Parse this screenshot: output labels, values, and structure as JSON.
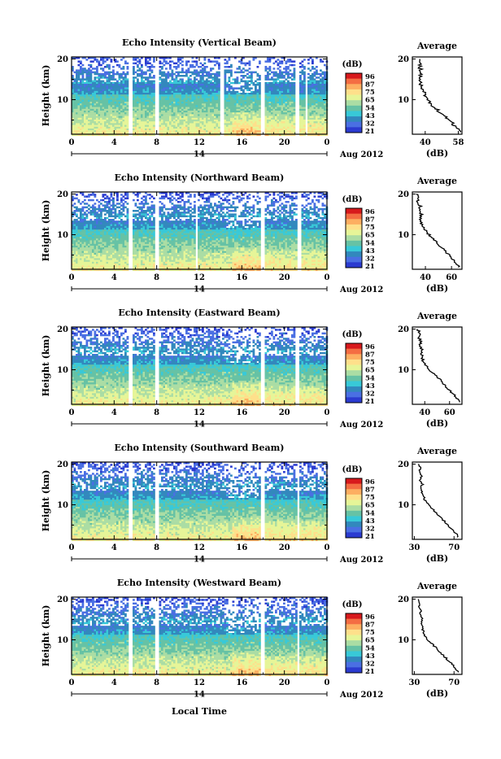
{
  "figure": {
    "xlabel": "Local Time",
    "date_label": "Aug 2012",
    "date_tick": "14",
    "ylabel": "Height (km)",
    "colorbar_unit": "(dB)",
    "average_title": "Average",
    "average_xlabel": "(dB)"
  },
  "colorbar": {
    "ticks": [
      "96",
      "87",
      "75",
      "65",
      "54",
      "43",
      "32",
      "21"
    ],
    "colors": [
      "#d7191c",
      "#f46d43",
      "#fdae61",
      "#fee08b",
      "#e6f598",
      "#abdda4",
      "#66c2a5",
      "#38c9d8",
      "#3288bd",
      "#4a6fe3",
      "#2b3bd0"
    ]
  },
  "chart_data": [
    {
      "type": "heatmap",
      "title": "Echo Intensity (Vertical Beam)",
      "xlabel": "Local Time",
      "ylabel": "Height (km)",
      "x_ticks": [
        "0",
        "4",
        "8",
        "12",
        "16",
        "20",
        "0"
      ],
      "xlim": [
        0,
        24
      ],
      "y_ticks": [
        "10",
        "20"
      ],
      "ylim": [
        1.5,
        20.5
      ],
      "colorbar": {
        "label": "(dB)",
        "ticks": [
          96,
          87,
          75,
          65,
          54,
          43,
          32,
          21
        ]
      },
      "gaps_hours": [
        [
          5.2,
          5.6
        ],
        [
          7.7,
          8.1
        ],
        [
          13.9,
          14.3
        ],
        [
          17.6,
          18.1
        ],
        [
          20.9,
          21.3
        ],
        [
          21.8,
          22.1
        ]
      ],
      "average_profile": {
        "title": "Average",
        "xlabel": "(dB)",
        "x_ticks": [
          "40",
          "58"
        ],
        "xlim": [
          33,
          60
        ],
        "height_km": [
          2,
          3,
          4,
          5,
          6,
          7,
          8,
          9,
          10,
          11,
          12,
          13,
          14,
          15,
          16,
          17,
          18,
          19,
          20
        ],
        "value_db": [
          59,
          57,
          55,
          53,
          51,
          48,
          45,
          43,
          41,
          40,
          39,
          38,
          37,
          38,
          37,
          38,
          37,
          38,
          37
        ]
      }
    },
    {
      "type": "heatmap",
      "title": "Echo Intensity (Northward Beam)",
      "xlabel": "Local Time",
      "ylabel": "Height (km)",
      "x_ticks": [
        "0",
        "4",
        "8",
        "12",
        "16",
        "20",
        "0"
      ],
      "xlim": [
        0,
        24
      ],
      "y_ticks": [
        "10",
        "20"
      ],
      "ylim": [
        1.5,
        20.5
      ],
      "colorbar": {
        "label": "(dB)",
        "ticks": [
          96,
          87,
          75,
          65,
          54,
          43,
          32,
          21
        ]
      },
      "gaps_hours": [
        [
          5.3,
          5.6
        ],
        [
          7.8,
          8.1
        ],
        [
          11.6,
          11.8
        ],
        [
          17.6,
          18.0
        ],
        [
          21.2,
          21.5
        ]
      ],
      "average_profile": {
        "title": "Average",
        "xlabel": "(dB)",
        "x_ticks": [
          "40",
          "60"
        ],
        "xlim": [
          30,
          68
        ],
        "height_km": [
          2,
          3,
          4,
          5,
          6,
          7,
          8,
          9,
          10,
          11,
          12,
          13,
          14,
          15,
          16,
          17,
          18,
          19,
          20
        ],
        "value_db": [
          66,
          64,
          61,
          58,
          55,
          52,
          49,
          46,
          43,
          40,
          38,
          37,
          36,
          37,
          35,
          36,
          34,
          35,
          33
        ]
      }
    },
    {
      "type": "heatmap",
      "title": "Echo Intensity (Eastward Beam)",
      "xlabel": "Local Time",
      "ylabel": "Height (km)",
      "x_ticks": [
        "0",
        "4",
        "8",
        "12",
        "16",
        "20",
        "0"
      ],
      "xlim": [
        0,
        24
      ],
      "y_ticks": [
        "10",
        "20"
      ],
      "ylim": [
        1.5,
        20.5
      ],
      "colorbar": {
        "label": "(dB)",
        "ticks": [
          96,
          87,
          75,
          65,
          54,
          43,
          32,
          21
        ]
      },
      "gaps_hours": [
        [
          5.3,
          5.6
        ],
        [
          7.8,
          8.1
        ],
        [
          17.6,
          18.0
        ],
        [
          21.0,
          21.3
        ]
      ],
      "average_profile": {
        "title": "Average",
        "xlabel": "(dB)",
        "x_ticks": [
          "40",
          "60"
        ],
        "xlim": [
          30,
          70
        ],
        "height_km": [
          2,
          3,
          4,
          5,
          6,
          7,
          8,
          9,
          10,
          11,
          12,
          13,
          14,
          15,
          16,
          17,
          18,
          19,
          20
        ],
        "value_db": [
          68,
          66,
          63,
          60,
          57,
          54,
          51,
          47,
          44,
          41,
          39,
          38,
          37,
          38,
          36,
          37,
          35,
          36,
          34
        ]
      }
    },
    {
      "type": "heatmap",
      "title": "Echo Intensity (Southward Beam)",
      "xlabel": "Local Time",
      "ylabel": "Height (km)",
      "x_ticks": [
        "0",
        "4",
        "8",
        "12",
        "16",
        "20",
        "0"
      ],
      "xlim": [
        0,
        24
      ],
      "y_ticks": [
        "10",
        "20"
      ],
      "ylim": [
        1.5,
        20.5
      ],
      "colorbar": {
        "label": "(dB)",
        "ticks": [
          96,
          87,
          75,
          65,
          54,
          43,
          32,
          21
        ]
      },
      "gaps_hours": [
        [
          5.3,
          5.6
        ],
        [
          7.8,
          8.1
        ],
        [
          17.6,
          18.0
        ],
        [
          21.1,
          21.4
        ]
      ],
      "average_profile": {
        "title": "Average",
        "xlabel": "(dB)",
        "x_ticks": [
          "30",
          "70"
        ],
        "xlim": [
          28,
          78
        ],
        "height_km": [
          2,
          3,
          4,
          5,
          6,
          7,
          8,
          9,
          10,
          11,
          12,
          13,
          14,
          15,
          16,
          17,
          18,
          19,
          20
        ],
        "value_db": [
          74,
          72,
          68,
          64,
          60,
          56,
          52,
          48,
          44,
          41,
          39,
          38,
          37,
          38,
          36,
          37,
          35,
          36,
          34
        ]
      }
    },
    {
      "type": "heatmap",
      "title": "Echo Intensity (Westward Beam)",
      "xlabel": "Local Time",
      "ylabel": "Height (km)",
      "x_ticks": [
        "0",
        "4",
        "8",
        "12",
        "16",
        "20",
        "0"
      ],
      "xlim": [
        0,
        24
      ],
      "y_ticks": [
        "10",
        "20"
      ],
      "ylim": [
        1.5,
        20.5
      ],
      "colorbar": {
        "label": "(dB)",
        "ticks": [
          96,
          87,
          75,
          65,
          54,
          43,
          32,
          21
        ]
      },
      "gaps_hours": [
        [
          5.3,
          5.6
        ],
        [
          7.8,
          8.1
        ],
        [
          17.6,
          18.0
        ],
        [
          21.1,
          21.4
        ]
      ],
      "average_profile": {
        "title": "Average",
        "xlabel": "(dB)",
        "x_ticks": [
          "30",
          "70"
        ],
        "xlim": [
          28,
          78
        ],
        "height_km": [
          2,
          3,
          4,
          5,
          6,
          7,
          8,
          9,
          10,
          11,
          12,
          13,
          14,
          15,
          16,
          17,
          18,
          19,
          20
        ],
        "value_db": [
          74,
          72,
          68,
          64,
          60,
          56,
          52,
          48,
          44,
          41,
          39,
          38,
          37,
          38,
          36,
          37,
          35,
          36,
          34
        ]
      }
    }
  ]
}
